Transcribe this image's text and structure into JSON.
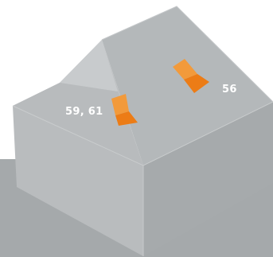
{
  "diagram": {
    "callouts": [
      {
        "label": "59, 61",
        "target": "flashing-patch-valley"
      },
      {
        "label": "56",
        "target": "flashing-patch-ridge"
      }
    ],
    "colors": {
      "background": "#ffffff",
      "ground": "#a5a9ab",
      "front_wall": "#b9bcbe",
      "side_wall": "#a6aaac",
      "gable_wall": "#b7bbbd",
      "gable_roof_left": "#c8cbcd",
      "main_roof_right": "#b4b8ba",
      "front_roof": "#bcbfc1",
      "patch_light": "#f29a3b",
      "patch_dark": "#ec7c16",
      "label_text": "#ffffff"
    }
  }
}
